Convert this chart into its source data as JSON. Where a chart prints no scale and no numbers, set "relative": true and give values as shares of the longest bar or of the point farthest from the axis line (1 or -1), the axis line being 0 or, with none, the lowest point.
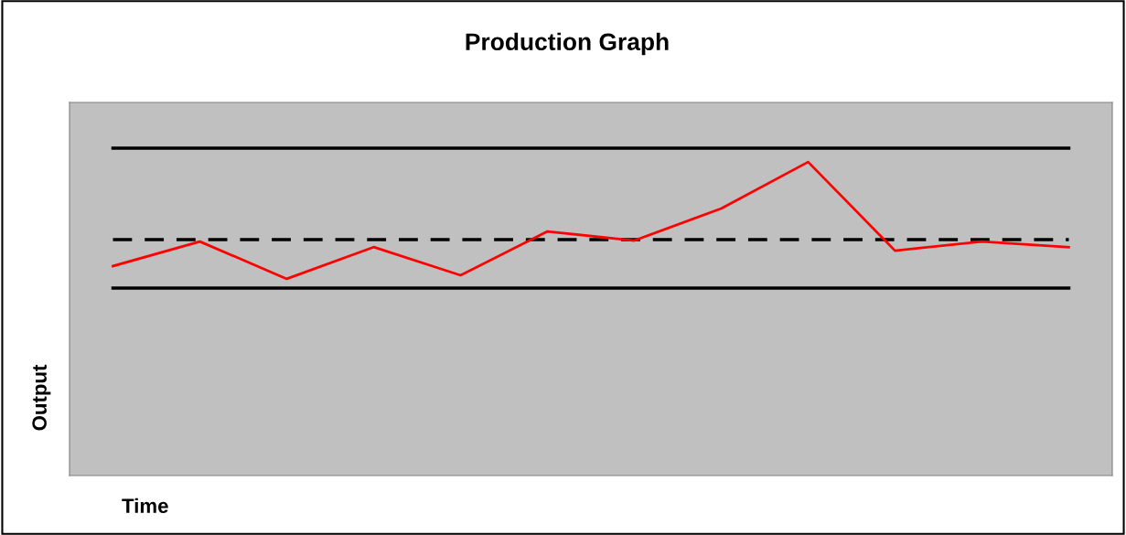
{
  "chart_data": {
    "type": "line",
    "title": "Production Graph",
    "xlabel": "Time",
    "ylabel": "Output",
    "relative": true,
    "marker": "none",
    "grid": false,
    "categories": [
      null,
      null,
      null,
      null,
      null,
      null,
      null,
      null,
      null,
      null,
      null,
      null
    ],
    "series": [
      {
        "color": "#000000",
        "line_style": "solid",
        "values": [
          1,
          1,
          1,
          1,
          1,
          1,
          1,
          1,
          1,
          1,
          1,
          1
        ]
      },
      {
        "color": "#000000",
        "line_style": "dashed",
        "values": [
          0.721,
          0.721,
          0.721,
          0.721,
          0.721,
          0.721,
          0.721,
          0.721,
          0.721,
          0.721,
          0.721,
          0.721
        ]
      },
      {
        "color": "#000000",
        "line_style": "solid",
        "values": [
          0.573,
          0.573,
          0.573,
          0.573,
          0.573,
          0.573,
          0.573,
          0.573,
          0.573,
          0.573,
          0.573,
          0.573
        ]
      },
      {
        "color": "#ff0000",
        "line_style": "solid",
        "values": [
          0.64,
          0.715,
          0.601,
          0.698,
          0.612,
          0.746,
          0.718,
          0.816,
          0.958,
          0.687,
          0.715,
          0.698
        ]
      }
    ]
  }
}
